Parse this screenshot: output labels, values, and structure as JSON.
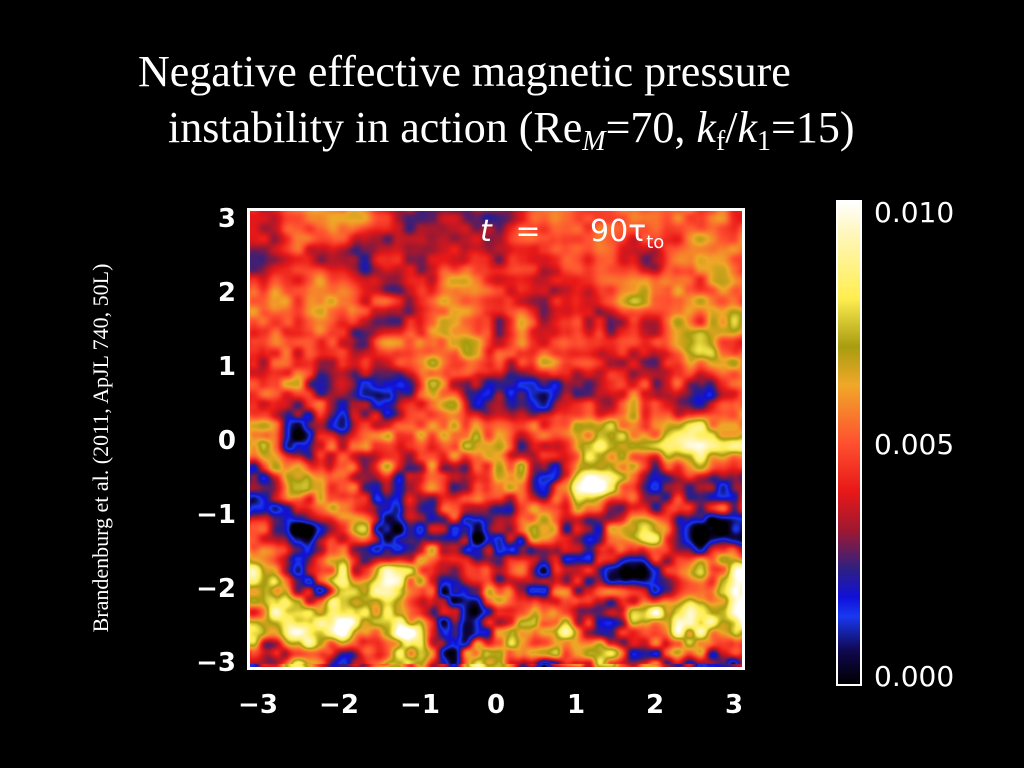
{
  "title": {
    "line1": "Negative effective magnetic pressure",
    "line2_prefix": "instability in action (Re",
    "line2_sub_M": "M",
    "line2_mid": "=70, ",
    "line2_k": "k",
    "line2_sub_f": "f",
    "line2_slash": "/",
    "line2_k2": "k",
    "line2_sub_1": "1",
    "line2_suffix": "=15)"
  },
  "citation": "Brandenburg et al. (2011, ApJL 740, 50L)",
  "chart_data": {
    "type": "heatmap",
    "annotation": {
      "t": "t",
      "equals": "=",
      "value": "90τ",
      "subscript": "to"
    },
    "x_ticks": [
      "−3",
      "−2",
      "−1",
      "0",
      "1",
      "2",
      "3"
    ],
    "y_ticks": [
      "3",
      "2",
      "1",
      "0",
      "−1",
      "−2",
      "−3"
    ],
    "xlim": [
      -3,
      3
    ],
    "ylim": [
      -3,
      3
    ],
    "colorbar": {
      "labels": [
        "0.010",
        "0.005",
        "0.000"
      ],
      "range": [
        0.0,
        0.01
      ]
    }
  },
  "colors": {
    "background": "#000000",
    "text": "#ffffff"
  }
}
